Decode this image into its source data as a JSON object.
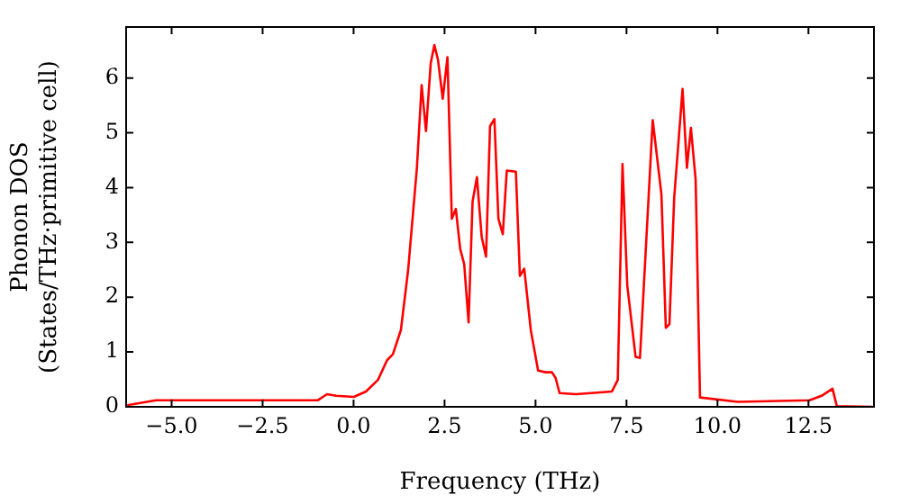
{
  "chart_data": {
    "type": "line",
    "xlabel": "Frequency (THz)",
    "ylabel": "Phonon DOS\n(States/THz·primitive cell)",
    "x": [
      -6.22,
      -5.43,
      -0.98,
      -0.73,
      -0.48,
      0.01,
      0.34,
      0.67,
      0.92,
      1.08,
      1.3,
      1.5,
      1.74,
      1.87,
      1.99,
      2.12,
      2.22,
      2.32,
      2.45,
      2.58,
      2.7,
      2.81,
      2.93,
      3.04,
      3.16,
      3.27,
      3.39,
      3.52,
      3.64,
      3.75,
      3.87,
      3.98,
      4.1,
      4.21,
      4.46,
      4.57,
      4.69,
      4.87,
      5.07,
      5.28,
      5.45,
      5.55,
      5.66,
      6.11,
      7.1,
      7.26,
      7.39,
      7.52,
      7.75,
      7.87,
      8.22,
      8.46,
      8.58,
      8.68,
      8.81,
      9.04,
      9.16,
      9.27,
      9.4,
      9.52,
      10.56,
      12.53,
      12.86,
      13.16,
      13.28,
      14.26
    ],
    "series": [
      {
        "color": "#ff0000",
        "values": [
          0.03,
          0.12,
          0.12,
          0.23,
          0.2,
          0.18,
          0.28,
          0.49,
          0.85,
          0.96,
          1.4,
          2.5,
          4.36,
          5.87,
          5.03,
          6.27,
          6.6,
          6.33,
          5.62,
          6.38,
          3.43,
          3.61,
          2.88,
          2.6,
          1.54,
          3.75,
          4.19,
          3.1,
          2.74,
          5.12,
          5.25,
          3.43,
          3.15,
          4.31,
          4.29,
          2.39,
          2.52,
          1.4,
          0.66,
          0.63,
          0.63,
          0.53,
          0.25,
          0.23,
          0.28,
          0.49,
          4.43,
          2.22,
          0.91,
          0.89,
          5.23,
          3.87,
          1.44,
          1.51,
          3.81,
          5.8,
          4.36,
          5.09,
          4.14,
          0.17,
          0.09,
          0.12,
          0.2,
          0.33,
          0.01,
          0
        ]
      }
    ],
    "xlim": [
      -6.25,
      14.3
    ],
    "ylim": [
      0,
      6.93
    ],
    "xticks": [
      {
        "value": -5,
        "label": "−5.0"
      },
      {
        "value": -2.5,
        "label": "−2.5"
      },
      {
        "value": 0,
        "label": "0.0"
      },
      {
        "value": 2.5,
        "label": "2.5"
      },
      {
        "value": 5,
        "label": "5.0"
      },
      {
        "value": 7.5,
        "label": "7.5"
      },
      {
        "value": 10,
        "label": "10.0"
      },
      {
        "value": 12.5,
        "label": "12.5"
      }
    ],
    "yticks": [
      0,
      1,
      2,
      3,
      4,
      5,
      6
    ],
    "marker": "none",
    "line_style": "solid",
    "legend": false
  }
}
